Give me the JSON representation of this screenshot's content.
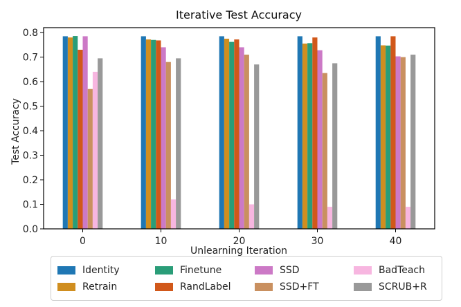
{
  "chart_data": {
    "type": "bar",
    "title": "Iterative Test Accuracy",
    "xlabel": "Unlearning Iteration",
    "ylabel": "Test Accuracy",
    "categories": [
      "0",
      "10",
      "20",
      "30",
      "40"
    ],
    "ylim": [
      0,
      0.82
    ],
    "yticks": [
      "0.0",
      "0.1",
      "0.2",
      "0.3",
      "0.4",
      "0.5",
      "0.6",
      "0.7",
      "0.8"
    ],
    "grid": false,
    "legend_position": "below",
    "series": [
      {
        "name": "Identity",
        "color": "#1f77b4",
        "values": [
          0.785,
          0.785,
          0.785,
          0.785,
          0.785
        ]
      },
      {
        "name": "Retrain",
        "color": "#d08e1f",
        "values": [
          0.78,
          0.772,
          0.775,
          0.755,
          0.748
        ]
      },
      {
        "name": "Finetune",
        "color": "#2a9d78",
        "values": [
          0.786,
          0.77,
          0.762,
          0.757,
          0.747
        ]
      },
      {
        "name": "RandLabel",
        "color": "#d1581a",
        "values": [
          0.73,
          0.768,
          0.772,
          0.78,
          0.785
        ]
      },
      {
        "name": "SSD",
        "color": "#cc79c6",
        "values": [
          0.785,
          0.74,
          0.74,
          0.728,
          0.703
        ]
      },
      {
        "name": "SSD+FT",
        "color": "#c99060",
        "values": [
          0.57,
          0.68,
          0.71,
          0.635,
          0.7
        ]
      },
      {
        "name": "BadTeach",
        "color": "#f7b6e0",
        "values": [
          0.64,
          0.12,
          0.1,
          0.09,
          0.09
        ]
      },
      {
        "name": "SCRUB+R",
        "color": "#999999",
        "values": [
          0.695,
          0.695,
          0.67,
          0.675,
          0.71
        ]
      }
    ]
  }
}
